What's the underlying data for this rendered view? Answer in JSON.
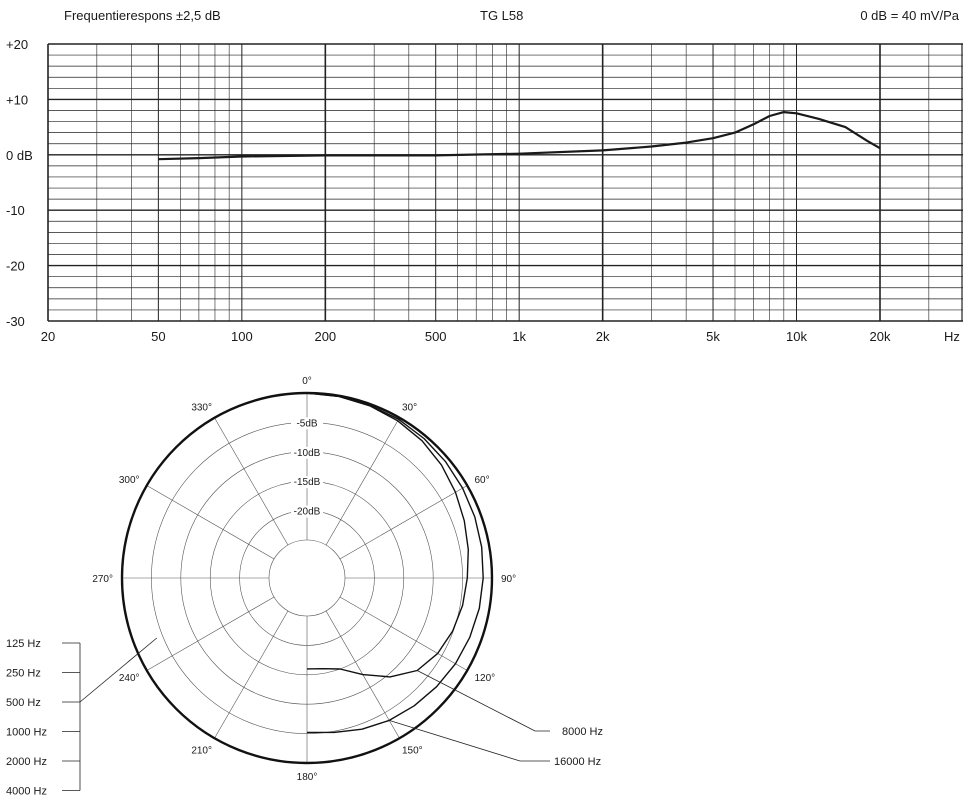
{
  "header": {
    "left": "Frequentierespons  ±2,5 dB",
    "center": "TG L58",
    "right": "0 dB = 40 mV/Pa"
  },
  "chart_data": [
    {
      "type": "line",
      "title": "",
      "xscale": "log",
      "xlim": [
        20,
        20000
      ],
      "ylim": [
        -30,
        20
      ],
      "grid": true,
      "x_tick_labels": [
        "20",
        "50",
        "100",
        "200",
        "500",
        "1k",
        "2k",
        "5k",
        "10k",
        "20k",
        "Hz"
      ],
      "y_tick_labels": [
        "+20",
        "+10",
        "0 dB",
        "-10",
        "-20",
        "-30"
      ],
      "series": [
        {
          "x": [
            50,
            70,
            100,
            200,
            500,
            1000,
            2000,
            3000,
            4000,
            5000,
            6000,
            7000,
            8000,
            9000,
            10000,
            12000,
            15000,
            18000,
            20000
          ],
          "y": [
            -0.8,
            -0.6,
            -0.3,
            -0.1,
            -0.1,
            0.2,
            0.8,
            1.5,
            2.2,
            3.0,
            4.0,
            5.5,
            7.0,
            7.7,
            7.5,
            6.5,
            5.0,
            2.5,
            1.2
          ]
        }
      ]
    },
    {
      "type": "polar",
      "title": "",
      "angle_labels": [
        "0°",
        "30°",
        "60°",
        "90°",
        "120°",
        "150°",
        "180°",
        "210°",
        "240°",
        "270°",
        "300°",
        "330°"
      ],
      "ring_labels": [
        "-5dB",
        "-10dB",
        "-15dB",
        "-20dB"
      ],
      "rings_db": [
        0,
        -5,
        -10,
        -15,
        -20
      ],
      "r_min_db": -25,
      "series": [
        {
          "name": "125 Hz / 250 Hz / 500 Hz / 1000 Hz / 2000 Hz / 4000 Hz",
          "angles": [
            0,
            30,
            60,
            90,
            120,
            150,
            180,
            210,
            240,
            270,
            300,
            330
          ],
          "db": [
            0,
            0,
            0,
            0,
            0,
            0,
            0,
            0,
            0,
            0,
            0,
            0
          ]
        },
        {
          "name": "8000 Hz",
          "angles": [
            0,
            10,
            20,
            30,
            40,
            50,
            60,
            70,
            80,
            90,
            100,
            110,
            120,
            130,
            140,
            150,
            160,
            170,
            180
          ],
          "db": [
            0,
            -0.1,
            -0.3,
            -0.6,
            -1.0,
            -1.6,
            -2.3,
            -3.0,
            -3.6,
            -4.2,
            -4.6,
            -5.1,
            -5.8,
            -7.0,
            -9.5,
            -12.5,
            -15.0,
            -15.8,
            -16.0
          ]
        },
        {
          "name": "16000 Hz",
          "angles": [
            0,
            10,
            20,
            30,
            40,
            50,
            60,
            70,
            80,
            90,
            100,
            110,
            120,
            130,
            140,
            150,
            160,
            170,
            180
          ],
          "db": [
            0,
            -0.1,
            -0.2,
            -0.3,
            -0.5,
            -0.7,
            -0.9,
            -1.1,
            -1.3,
            -1.5,
            -1.7,
            -2.0,
            -2.3,
            -2.7,
            -3.1,
            -3.5,
            -4.1,
            -4.8,
            -5.2
          ]
        }
      ],
      "legend_left": [
        "125 Hz",
        "250 Hz",
        "500 Hz",
        "1000 Hz",
        "2000 Hz",
        "4000 Hz"
      ],
      "legend_right": [
        "8000 Hz",
        "16000 Hz"
      ]
    }
  ]
}
